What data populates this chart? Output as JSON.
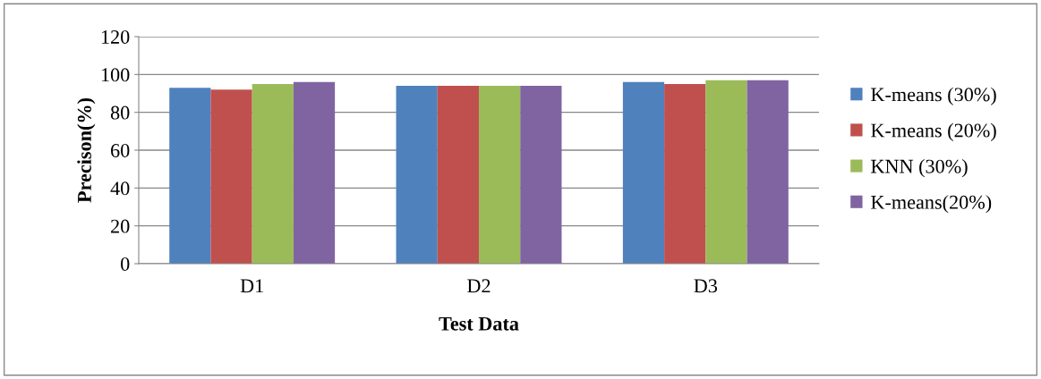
{
  "chart_data": {
    "type": "bar",
    "xlabel": "Test Data",
    "ylabel": "Precison(%)",
    "categories": [
      "D1",
      "D2",
      "D3"
    ],
    "series": [
      {
        "name": "K-means (30%)",
        "color": "#4f81bd",
        "values": [
          93,
          94,
          96
        ]
      },
      {
        "name": "K-means (20%)",
        "color": "#c0504d",
        "values": [
          92,
          94,
          95
        ]
      },
      {
        "name": "KNN (30%)",
        "color": "#9bbb59",
        "values": [
          95,
          94,
          97
        ]
      },
      {
        "name": "K-means(20%)",
        "color": "#8064a2",
        "values": [
          96,
          94,
          97
        ]
      }
    ],
    "ylim": [
      0,
      120
    ],
    "yticks": [
      0,
      20,
      40,
      60,
      80,
      100,
      120
    ],
    "grid": "y",
    "legend": "right"
  }
}
